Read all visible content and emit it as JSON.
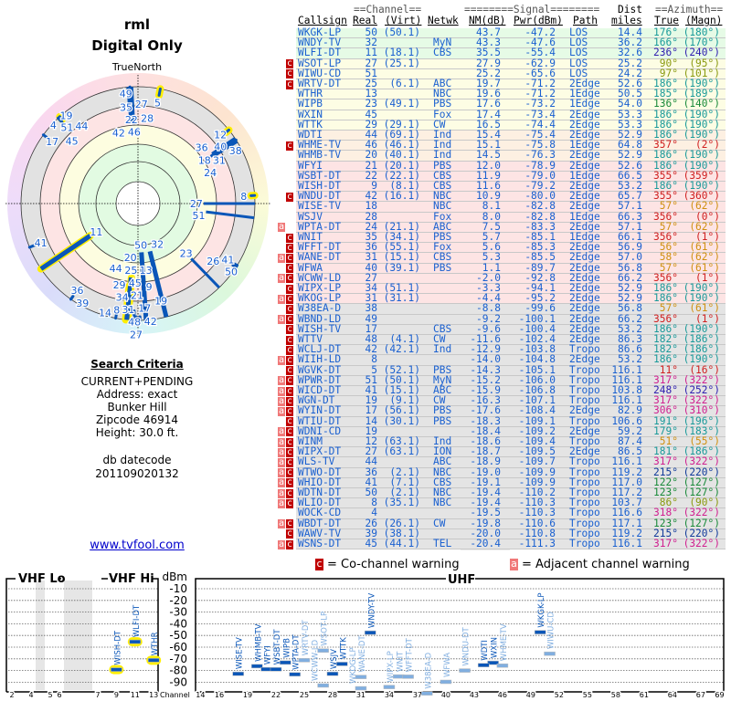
{
  "title": "rml",
  "subtitle": "Digital Only",
  "north_label": "TrueNorth",
  "search": {
    "heading": "Search Criteria",
    "lines": [
      "CURRENT+PENDING",
      "Address: exact",
      "Bunker Hill",
      "Zipcode 46914",
      "Height: 30.0 ft."
    ],
    "db_label": "db datecode",
    "db_value": "201109020132"
  },
  "link": "www.tvfool.com",
  "table": {
    "group_headers": {
      "channel": "==Channel==",
      "signal": "========Signal========",
      "dist": "Dist",
      "azimuth": "==Azimuth=="
    },
    "columns": [
      "Callsign",
      "Real",
      "(Virt)",
      "Netwk",
      "NM(dB)",
      "Pwr(dBm)",
      "Path",
      "miles",
      "True",
      "(Magn)"
    ],
    "rows": [
      [
        "",
        "WKGK-LP",
        "50",
        "(50.1)",
        "",
        "43.7",
        "-47.2",
        "LOS",
        "14.4",
        "176°",
        "(180°)"
      ],
      [
        "",
        "WNDY-TV",
        "32",
        "",
        "MyN",
        "43.3",
        "-47.6",
        "LOS",
        "36.2",
        "166°",
        "(170°)"
      ],
      [
        "",
        "WLFI-DT",
        "11",
        "(18.1)",
        "CBS",
        "35.5",
        "-55.4",
        "LOS",
        "32.6",
        "236°",
        "(240°)"
      ],
      [
        "c",
        "WSOT-LP",
        "27",
        "(25.1)",
        "",
        "27.9",
        "-62.9",
        "LOS",
        "25.2",
        "90°",
        "(95°)"
      ],
      [
        "c",
        "WIWU-CD",
        "51",
        "",
        "",
        "25.2",
        "-65.6",
        "LOS",
        "24.2",
        "97°",
        "(101°)"
      ],
      [
        "c",
        "WRTV-DT",
        "25",
        "(6.1)",
        "ABC",
        "19.7",
        "-71.2",
        "2Edge",
        "52.6",
        "186°",
        "(190°)"
      ],
      [
        "",
        "WTHR",
        "13",
        "",
        "NBC",
        "19.6",
        "-71.2",
        "1Edge",
        "50.5",
        "185°",
        "(189°)"
      ],
      [
        "",
        "WIPB",
        "23",
        "(49.1)",
        "PBS",
        "17.6",
        "-73.2",
        "1Edge",
        "54.0",
        "136°",
        "(140°)"
      ],
      [
        "",
        "WXIN",
        "45",
        "",
        "Fox",
        "17.4",
        "-73.4",
        "2Edge",
        "53.3",
        "186°",
        "(190°)"
      ],
      [
        "",
        "WTTK",
        "29",
        "(29.1)",
        "CW",
        "16.5",
        "-74.4",
        "2Edge",
        "53.3",
        "186°",
        "(190°)"
      ],
      [
        "",
        "WDTI",
        "44",
        "(69.1)",
        "Ind",
        "15.4",
        "-75.4",
        "2Edge",
        "52.9",
        "186°",
        "(190°)"
      ],
      [
        "c",
        "WHME-TV",
        "46",
        "(46.1)",
        "Ind",
        "15.1",
        "-75.8",
        "1Edge",
        "64.8",
        "357°",
        "(2°)"
      ],
      [
        "",
        "WHMB-TV",
        "20",
        "(40.1)",
        "Ind",
        "14.5",
        "-76.3",
        "2Edge",
        "52.9",
        "186°",
        "(190°)"
      ],
      [
        "",
        "WFYI",
        "21",
        "(20.1)",
        "PBS",
        "12.0",
        "-78.9",
        "2Edge",
        "52.6",
        "186°",
        "(190°)"
      ],
      [
        "",
        "WSBT-DT",
        "22",
        "(22.1)",
        "CBS",
        "11.9",
        "-79.0",
        "1Edge",
        "66.5",
        "355°",
        "(359°)"
      ],
      [
        "",
        "WISH-DT",
        "9",
        "(8.1)",
        "CBS",
        "11.6",
        "-79.2",
        "2Edge",
        "53.2",
        "186°",
        "(190°)"
      ],
      [
        "c",
        "WNDU-DT",
        "42",
        "(16.1)",
        "NBC",
        "10.9",
        "-80.0",
        "2Edge",
        "65.7",
        "355°",
        "(360°)"
      ],
      [
        "",
        "WISE-TV",
        "18",
        "",
        "NBC",
        "8.1",
        "-82.8",
        "2Edge",
        "57.1",
        "57°",
        "(62°)"
      ],
      [
        "",
        "WSJV",
        "28",
        "",
        "Fox",
        "8.0",
        "-82.8",
        "1Edge",
        "66.3",
        "356°",
        "(0°)"
      ],
      [
        "a",
        "WPTA-DT",
        "24",
        "(21.1)",
        "ABC",
        "7.5",
        "-83.3",
        "2Edge",
        "57.1",
        "57°",
        "(62°)"
      ],
      [
        "c",
        "WNIT",
        "35",
        "(34.1)",
        "PBS",
        "5.7",
        "-85.1",
        "1Edge",
        "66.1",
        "356°",
        "(1°)"
      ],
      [
        "c",
        "WFFT-DT",
        "36",
        "(55.1)",
        "Fox",
        "5.6",
        "-85.3",
        "2Edge",
        "56.9",
        "56°",
        "(61°)"
      ],
      [
        "ac",
        "WANE-DT",
        "31",
        "(15.1)",
        "CBS",
        "5.3",
        "-85.5",
        "2Edge",
        "57.0",
        "58°",
        "(62°)"
      ],
      [
        "c",
        "WFWA",
        "40",
        "(39.1)",
        "PBS",
        "1.1",
        "-89.7",
        "2Edge",
        "56.8",
        "57°",
        "(61°)"
      ],
      [
        "ac",
        "WCWW-LD",
        "27",
        "",
        "",
        "-2.0",
        "-92.8",
        "2Edge",
        "66.2",
        "356°",
        "(1°)"
      ],
      [
        "c",
        "WIPX-LP",
        "34",
        "(51.1)",
        "",
        "-3.3",
        "-94.1",
        "2Edge",
        "52.9",
        "186°",
        "(190°)"
      ],
      [
        "ac",
        "WKOG-LP",
        "31",
        "(31.1)",
        "",
        "-4.4",
        "-95.2",
        "2Edge",
        "52.9",
        "186°",
        "(190°)"
      ],
      [
        "c",
        "W38EA-D",
        "38",
        "",
        "",
        "-8.8",
        "-99.6",
        "2Edge",
        "56.8",
        "57°",
        "(61°)"
      ],
      [
        "ac",
        "WBND-LD",
        "49",
        "",
        "",
        "-9.2",
        "-100.1",
        "2Edge",
        "66.2",
        "356°",
        "(1°)"
      ],
      [
        "c",
        "WISH-TV",
        "17",
        "",
        "CBS",
        "-9.6",
        "-100.4",
        "2Edge",
        "53.2",
        "186°",
        "(190°)"
      ],
      [
        "c",
        "WTTV",
        "48",
        "(4.1)",
        "CW",
        "-11.6",
        "-102.4",
        "2Edge",
        "86.3",
        "182°",
        "(186°)"
      ],
      [
        "c",
        "WCLJ-DT",
        "42",
        "(42.1)",
        "Ind",
        "-12.9",
        "-103.8",
        "Tropo",
        "86.6",
        "182°",
        "(186°)"
      ],
      [
        "ac",
        "WIIH-LD",
        "8",
        "",
        "",
        "-14.0",
        "-104.8",
        "2Edge",
        "53.2",
        "186°",
        "(190°)"
      ],
      [
        "c",
        "WGVK-DT",
        "5",
        "(52.1)",
        "PBS",
        "-14.3",
        "-105.1",
        "Tropo",
        "116.1",
        "11°",
        "(16°)"
      ],
      [
        "ac",
        "WPWR-DT",
        "51",
        "(50.1)",
        "MyN",
        "-15.2",
        "-106.0",
        "Tropo",
        "116.1",
        "317°",
        "(322°)"
      ],
      [
        "ac",
        "WICD-DT",
        "41",
        "(15.1)",
        "ABC",
        "-15.9",
        "-106.8",
        "Tropo",
        "103.8",
        "248°",
        "(252°)"
      ],
      [
        "ac",
        "WGN-DT",
        "19",
        "(9.1)",
        "CW",
        "-16.3",
        "-107.1",
        "Tropo",
        "116.1",
        "317°",
        "(322°)"
      ],
      [
        "ac",
        "WYIN-DT",
        "17",
        "(56.1)",
        "PBS",
        "-17.6",
        "-108.4",
        "2Edge",
        "82.9",
        "306°",
        "(310°)"
      ],
      [
        "c",
        "WTIU-DT",
        "14",
        "(30.1)",
        "PBS",
        "-18.3",
        "-109.1",
        "Tropo",
        "106.6",
        "191°",
        "(196°)"
      ],
      [
        "ac",
        "WDNI-CD",
        "19",
        "",
        "",
        "-18.4",
        "-109.2",
        "2Edge",
        "59.2",
        "179°",
        "(183°)"
      ],
      [
        "ac",
        "WINM",
        "12",
        "(63.1)",
        "Ind",
        "-18.6",
        "-109.4",
        "Tropo",
        "87.4",
        "51°",
        "(55°)"
      ],
      [
        "ac",
        "WIPX-DT",
        "27",
        "(63.1)",
        "ION",
        "-18.7",
        "-109.5",
        "2Edge",
        "86.5",
        "181°",
        "(186°)"
      ],
      [
        "ac",
        "WLS-TV",
        "44",
        "",
        "ABC",
        "-18.9",
        "-109.7",
        "Tropo",
        "116.1",
        "317°",
        "(322°)"
      ],
      [
        "ac",
        "WTWO-DT",
        "36",
        "(2.1)",
        "NBC",
        "-19.0",
        "-109.9",
        "Tropo",
        "119.2",
        "215°",
        "(220°)"
      ],
      [
        "ac",
        "WHIO-DT",
        "41",
        "(7.1)",
        "CBS",
        "-19.1",
        "-109.9",
        "Tropo",
        "117.0",
        "122°",
        "(127°)"
      ],
      [
        "ac",
        "WDTN-DT",
        "50",
        "(2.1)",
        "NBC",
        "-19.4",
        "-110.2",
        "Tropo",
        "117.2",
        "123°",
        "(127°)"
      ],
      [
        "ac",
        "WLIO-DT",
        "8",
        "(35.1)",
        "NBC",
        "-19.4",
        "-110.3",
        "Tropo",
        "103.7",
        "86°",
        "(90°)"
      ],
      [
        "",
        "WOCK-CD",
        "4",
        "",
        "",
        "-19.5",
        "-110.3",
        "Tropo",
        "116.6",
        "318°",
        "(322°)"
      ],
      [
        "ac",
        "WBDT-DT",
        "26",
        "(26.1)",
        "CW",
        "-19.8",
        "-110.6",
        "Tropo",
        "117.1",
        "123°",
        "(127°)"
      ],
      [
        "c",
        "WAWV-TV",
        "39",
        "(38.1)",
        "",
        "-20.0",
        "-110.8",
        "Tropo",
        "119.2",
        "215°",
        "(220°)"
      ],
      [
        "ac",
        "WSNS-DT",
        "45",
        "(44.1)",
        "TEL",
        "-20.4",
        "-111.3",
        "Tropo",
        "116.1",
        "317°",
        "(322°)"
      ]
    ]
  },
  "legend": {
    "co_symbol": "c",
    "co_label": "= Co-channel warning",
    "adj_symbol": "a",
    "adj_label": "= Adjacent channel warning"
  },
  "spectrum": {
    "vhf_lo": "VHF Lo",
    "vhf_hi": "VHF Hi",
    "uhf": "UHF",
    "unit": "dBm",
    "channel_label": "Channel",
    "dbm_ticks": [
      "-10",
      "-20",
      "-30",
      "-40",
      "-50",
      "-60",
      "-70",
      "-80",
      "-90"
    ],
    "vhf_ticks": [
      "2",
      "4",
      "5",
      "6",
      "7",
      "9",
      "11",
      "13"
    ],
    "uhf_ticks": [
      "14",
      "16",
      "19",
      "22",
      "25",
      "28",
      "31",
      "34",
      "37",
      "40",
      "43",
      "46",
      "49",
      "52",
      "55",
      "58",
      "61",
      "64",
      "67",
      "69"
    ]
  },
  "colors": {
    "strong_bar": "#0a56b8",
    "warn_bar": "#80aee0",
    "cochannel": "#c00000",
    "adjacent": "#f07878",
    "text": "#1a60d0"
  }
}
